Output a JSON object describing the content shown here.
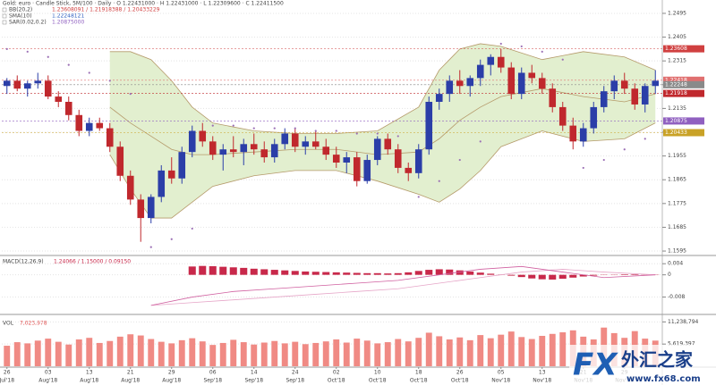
{
  "chart_data": [
    {
      "type": "candlestick",
      "legend_main": "Gold: euro · Candle Stick, 5M/100 · Daily · O 1.22431000 · H 1.22431000 · L 1.22309600 · C 1.22411500",
      "indicators": [
        {
          "name": "BB(20,2)",
          "text": "1.23608091 / 1.21918388 / 1.20433229",
          "color": "#d04040"
        },
        {
          "name": "SMA(10)",
          "text": "1.22248121",
          "color": "#3060c0"
        },
        {
          "name": "SAR(0.02,0.2)",
          "text": "1.20875000",
          "color": "#9060c0"
        }
      ],
      "x_days": [
        "26",
        null,
        null,
        null,
        "03",
        null,
        null,
        null,
        "13",
        null,
        null,
        null,
        "21",
        null,
        null,
        null,
        "29",
        null,
        null,
        null,
        "06",
        null,
        null,
        null,
        "14",
        null,
        null,
        null,
        "24",
        null,
        null,
        null,
        "02",
        null,
        null,
        null,
        "10",
        null,
        null,
        null,
        "18",
        null,
        null,
        null,
        "26",
        null,
        null,
        null,
        "05",
        null,
        null,
        null,
        "13",
        null,
        null,
        null,
        "21",
        null,
        null,
        null,
        "29",
        null,
        null,
        null
      ],
      "x_months": [
        "Jul'18",
        null,
        null,
        null,
        "Aug'18",
        null,
        null,
        null,
        "Aug'18",
        null,
        null,
        null,
        "Aug'18",
        null,
        null,
        null,
        "Aug'18",
        null,
        null,
        null,
        "Sep'18",
        null,
        null,
        null,
        "Sep'18",
        null,
        null,
        null,
        "Sep'18",
        null,
        null,
        null,
        "Oct'18",
        null,
        null,
        null,
        "Oct'18",
        null,
        null,
        null,
        "Oct'18",
        null,
        null,
        null,
        "Oct'18",
        null,
        null,
        null,
        "Nov'18",
        null,
        null,
        null,
        "Nov'18",
        null,
        null,
        null,
        "Nov'18",
        null,
        null,
        null,
        "Nov'18",
        null,
        null,
        null
      ],
      "candles": [
        [
          1.222,
          1.225,
          1.219,
          1.224
        ],
        [
          1.224,
          1.226,
          1.22,
          1.221
        ],
        [
          1.221,
          1.224,
          1.218,
          1.223
        ],
        [
          1.223,
          1.227,
          1.221,
          1.224
        ],
        [
          1.224,
          1.226,
          1.217,
          1.218
        ],
        [
          1.218,
          1.22,
          1.214,
          1.216
        ],
        [
          1.216,
          1.218,
          1.209,
          1.211
        ],
        [
          1.211,
          1.213,
          1.203,
          1.205
        ],
        [
          1.205,
          1.21,
          1.203,
          1.208
        ],
        [
          1.208,
          1.21,
          1.205,
          1.206
        ],
        [
          1.206,
          1.208,
          1.197,
          1.199
        ],
        [
          1.199,
          1.201,
          1.186,
          1.188
        ],
        [
          1.188,
          1.19,
          1.177,
          1.179
        ],
        [
          1.179,
          1.181,
          1.163,
          1.172
        ],
        [
          1.172,
          1.181,
          1.17,
          1.18
        ],
        [
          1.18,
          1.192,
          1.178,
          1.19
        ],
        [
          1.19,
          1.195,
          1.185,
          1.187
        ],
        [
          1.187,
          1.199,
          1.185,
          1.197
        ],
        [
          1.197,
          1.207,
          1.195,
          1.205
        ],
        [
          1.205,
          1.208,
          1.199,
          1.201
        ],
        [
          1.201,
          1.203,
          1.194,
          1.196
        ],
        [
          1.196,
          1.2,
          1.19,
          1.198
        ],
        [
          1.198,
          1.203,
          1.195,
          1.197
        ],
        [
          1.197,
          1.202,
          1.192,
          1.2
        ],
        [
          1.2,
          1.204,
          1.196,
          1.198
        ],
        [
          1.198,
          1.201,
          1.193,
          1.195
        ],
        [
          1.195,
          1.202,
          1.193,
          1.2
        ],
        [
          1.2,
          1.206,
          1.198,
          1.204
        ],
        [
          1.204,
          1.206,
          1.197,
          1.199
        ],
        [
          1.199,
          1.203,
          1.196,
          1.201
        ],
        [
          1.201,
          1.205,
          1.198,
          1.199
        ],
        [
          1.199,
          1.202,
          1.194,
          1.196
        ],
        [
          1.196,
          1.199,
          1.191,
          1.193
        ],
        [
          1.193,
          1.197,
          1.189,
          1.195
        ],
        [
          1.195,
          1.197,
          1.184,
          1.186
        ],
        [
          1.186,
          1.196,
          1.185,
          1.194
        ],
        [
          1.194,
          1.203,
          1.192,
          1.202
        ],
        [
          1.202,
          1.204,
          1.196,
          1.198
        ],
        [
          1.198,
          1.2,
          1.189,
          1.191
        ],
        [
          1.191,
          1.193,
          1.186,
          1.189
        ],
        [
          1.189,
          1.2,
          1.187,
          1.198
        ],
        [
          1.198,
          1.218,
          1.196,
          1.216
        ],
        [
          1.216,
          1.221,
          1.213,
          1.219
        ],
        [
          1.219,
          1.226,
          1.216,
          1.224
        ],
        [
          1.224,
          1.228,
          1.219,
          1.222
        ],
        [
          1.222,
          1.226,
          1.218,
          1.225
        ],
        [
          1.225,
          1.232,
          1.222,
          1.23
        ],
        [
          1.23,
          1.234,
          1.226,
          1.233
        ],
        [
          1.233,
          1.236,
          1.227,
          1.229
        ],
        [
          1.229,
          1.231,
          1.217,
          1.219
        ],
        [
          1.219,
          1.229,
          1.217,
          1.227
        ],
        [
          1.227,
          1.23,
          1.223,
          1.225
        ],
        [
          1.225,
          1.227,
          1.219,
          1.221
        ],
        [
          1.221,
          1.223,
          1.212,
          1.214
        ],
        [
          1.214,
          1.216,
          1.205,
          1.207
        ],
        [
          1.207,
          1.21,
          1.198,
          1.201
        ],
        [
          1.201,
          1.208,
          1.199,
          1.206
        ],
        [
          1.206,
          1.216,
          1.204,
          1.214
        ],
        [
          1.214,
          1.222,
          1.212,
          1.22
        ],
        [
          1.22,
          1.226,
          1.217,
          1.224
        ],
        [
          1.224,
          1.227,
          1.219,
          1.221
        ],
        [
          1.221,
          1.223,
          1.213,
          1.215
        ],
        [
          1.215,
          1.223,
          1.212,
          1.222
        ],
        [
          1.222,
          1.228,
          1.219,
          1.224
        ]
      ],
      "up_color": "#2b3ea8",
      "down_color": "#c0282d",
      "ylim": [
        1.1585,
        1.2505
      ],
      "yticks": [
        1.2495,
        1.2405,
        1.2315,
        1.2225,
        1.2135,
        1.2045,
        1.1955,
        1.1865,
        1.1775,
        1.1685,
        1.1595
      ],
      "bands": {
        "x": [
          10,
          12,
          14,
          16,
          18,
          20,
          24,
          28,
          32,
          36,
          40,
          42,
          44,
          46,
          48,
          52,
          56,
          60,
          63
        ],
        "upper": [
          1.235,
          1.235,
          1.232,
          1.224,
          1.214,
          1.208,
          1.205,
          1.204,
          1.204,
          1.205,
          1.214,
          1.228,
          1.236,
          1.238,
          1.237,
          1.232,
          1.235,
          1.233,
          1.228
        ],
        "mid": [
          1.214,
          1.208,
          1.203,
          1.198,
          1.196,
          1.196,
          1.197,
          1.198,
          1.198,
          1.196,
          1.197,
          1.202,
          1.209,
          1.214,
          1.218,
          1.221,
          1.218,
          1.216,
          1.219
        ],
        "lower": [
          1.196,
          1.183,
          1.172,
          1.172,
          1.178,
          1.184,
          1.188,
          1.19,
          1.19,
          1.186,
          1.181,
          1.178,
          1.183,
          1.19,
          1.199,
          1.205,
          1.201,
          1.202,
          1.208
        ],
        "fill": "#e2efcf",
        "color": "#b59a6a"
      },
      "sar": {
        "x": [
          0,
          2,
          4,
          6,
          8,
          10,
          12,
          14,
          16,
          18,
          20,
          22,
          24,
          26,
          28,
          30,
          32,
          34,
          36,
          38,
          40,
          42,
          44,
          46,
          48,
          50,
          52,
          54,
          56,
          58,
          60,
          62
        ],
        "values": [
          1.236,
          1.235,
          1.233,
          1.23,
          1.227,
          1.224,
          1.219,
          1.161,
          1.164,
          1.168,
          1.207,
          1.207,
          1.206,
          1.206,
          1.206,
          1.205,
          1.205,
          1.204,
          1.204,
          1.203,
          1.18,
          1.186,
          1.194,
          1.201,
          1.238,
          1.237,
          1.235,
          1.232,
          1.191,
          1.194,
          1.198,
          1.202
        ],
        "color": "#9b6fb5"
      },
      "price_tags": [
        {
          "value": 1.23608,
          "color": "#d04040"
        },
        {
          "value": 1.22418,
          "color": "#e07070"
        },
        {
          "value": 1.22248,
          "color": "#8a8a8a"
        },
        {
          "value": 1.21918,
          "color": "#c0282d"
        },
        {
          "value": 1.20875,
          "color": "#9060c0"
        },
        {
          "value": 1.20433,
          "color": "#c9a227"
        }
      ]
    },
    {
      "type": "macd",
      "title": "MACD(12,26,9)",
      "legend_text": "1.24066 / 1.15000 / 0.09150",
      "histogram": [
        null,
        null,
        null,
        null,
        null,
        null,
        null,
        null,
        null,
        null,
        null,
        null,
        null,
        null,
        null,
        null,
        null,
        null,
        0.003,
        0.0032,
        0.0031,
        0.0029,
        0.0027,
        0.0025,
        0.0022,
        0.002,
        0.0018,
        0.0016,
        0.0014,
        0.0012,
        0.0011,
        0.001,
        0.0009,
        0.0008,
        0.0007,
        0.0006,
        0.0006,
        0.0005,
        0.0006,
        0.0009,
        0.0014,
        0.0018,
        0.002,
        0.0019,
        0.0016,
        0.0012,
        0.0008,
        0.0004,
        0.0001,
        -0.0003,
        -0.0008,
        -0.0013,
        -0.0016,
        -0.0017,
        -0.0014,
        -0.001,
        -0.0006,
        -0.0003,
        -0.0001,
        0.0001,
        0.0002,
        0.0002,
        0.0001,
        0.0001
      ],
      "hist_color": "#c8284a",
      "macd": {
        "x": [
          14,
          18,
          22,
          26,
          30,
          34,
          38,
          42,
          46,
          50,
          54,
          58,
          63
        ],
        "values": [
          -0.011,
          -0.008,
          -0.006,
          -0.005,
          -0.004,
          -0.003,
          -0.002,
          0.0,
          0.002,
          0.003,
          0.001,
          -0.001,
          0.0
        ],
        "color": "#d060a0"
      },
      "signal": {
        "x": [
          14,
          18,
          22,
          26,
          30,
          34,
          38,
          42,
          46,
          50,
          54,
          58,
          63
        ],
        "values": [
          -0.011,
          -0.01,
          -0.009,
          -0.008,
          -0.007,
          -0.006,
          -0.005,
          -0.003,
          -0.001,
          0.001,
          0.002,
          0.001,
          0.0
        ],
        "color": "#e6a6c8"
      },
      "ylim": [
        -0.012,
        0.006
      ],
      "yticks": [
        0.004,
        0,
        -0.008
      ]
    },
    {
      "type": "volume",
      "title": "VOL",
      "legend_text": "7,023,978",
      "values": [
        5200000,
        6100000,
        5800000,
        6500000,
        7000000,
        6200000,
        5500000,
        6800000,
        7200000,
        5900000,
        6400000,
        7500000,
        8100000,
        7800000,
        6900000,
        6200000,
        5800000,
        6600000,
        7100000,
        6300000,
        5400000,
        5900000,
        6700000,
        6100000,
        5500000,
        6000000,
        6400000,
        5800000,
        6200000,
        5600000,
        5900000,
        6300000,
        6800000,
        6000000,
        7000000,
        6500000,
        5800000,
        6100000,
        6900000,
        6300000,
        7200000,
        8500000,
        7600000,
        6800000,
        7300000,
        6600000,
        7900000,
        7100000,
        8000000,
        8800000,
        7400000,
        6900000,
        7700000,
        8200000,
        8600000,
        9100000,
        7500000,
        6800000,
        9800000,
        8400000,
        7200000,
        8900000,
        7000000,
        6500000
      ],
      "color": "#f08a84",
      "ylim": [
        0,
        12000000
      ],
      "yticks": [
        {
          "value": 11238794,
          "label": "11,238,794"
        },
        {
          "value": 5619397,
          "label": "5,619,397"
        }
      ]
    }
  ],
  "watermark": {
    "logo": "FX",
    "name": "外汇之家",
    "url": "www.fx68.com"
  }
}
